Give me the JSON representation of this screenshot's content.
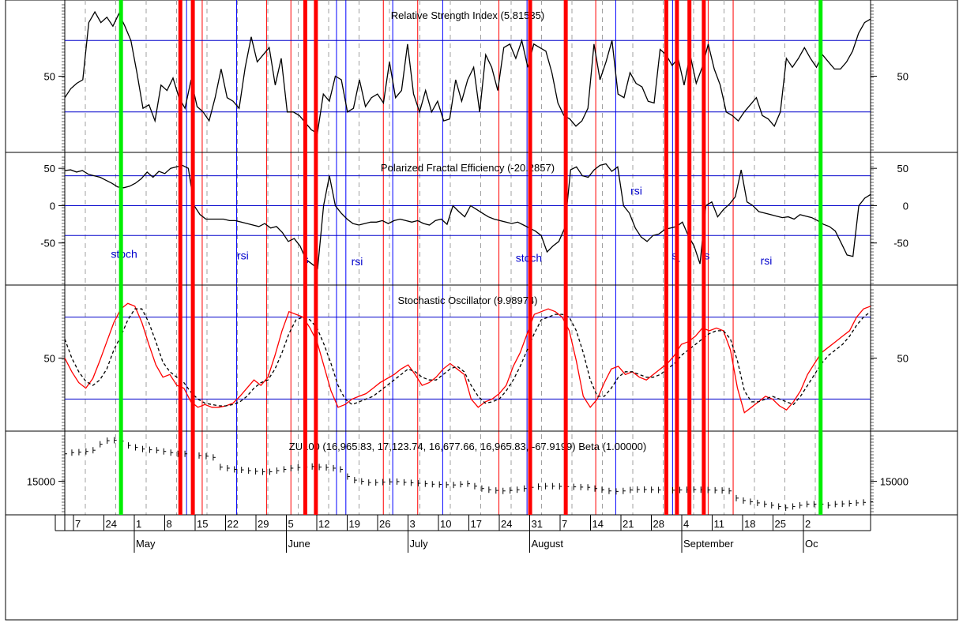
{
  "colors": {
    "background": "#ffffff",
    "frame": "#000000",
    "level_line": "#0000cc",
    "signal_red": "#ff0000",
    "signal_green": "#00ee00",
    "signal_blue": "#0000ff",
    "grid": "#a0a0a0",
    "series_black": "#000000",
    "series_red": "#ff0000",
    "label_blue": "#0000cc"
  },
  "chart_data": [
    {
      "type": "line",
      "title": "Relative Strength Index (5.81535)",
      "ylim": [
        10,
        90
      ],
      "levels": [
        30,
        70
      ],
      "y_ticks": [
        "50"
      ],
      "y_tick_values": [
        50
      ],
      "series": [
        {
          "style": "solid-black",
          "values": [
            38,
            43,
            46,
            48,
            80,
            86,
            80,
            83,
            78,
            85,
            78,
            70,
            52,
            32,
            34,
            25,
            45,
            42,
            49,
            38,
            32,
            48,
            33,
            30,
            25,
            38,
            54,
            38,
            36,
            32,
            55,
            72,
            58,
            62,
            66,
            45,
            60,
            30,
            30,
            28,
            24,
            20,
            18,
            40,
            36,
            50,
            48,
            30,
            32,
            48,
            33,
            38,
            40,
            35,
            58,
            38,
            42,
            68,
            40,
            30,
            42,
            30,
            36,
            25,
            26,
            48,
            36,
            48,
            55,
            30,
            62,
            55,
            42,
            66,
            68,
            60,
            70,
            55,
            68,
            66,
            64,
            52,
            35,
            28,
            26,
            22,
            25,
            32,
            68,
            48,
            58,
            70,
            40,
            38,
            52,
            46,
            44,
            36,
            35,
            65,
            62,
            56,
            60,
            45,
            62,
            46,
            55,
            68,
            54,
            45,
            30,
            28,
            25,
            30,
            34,
            38,
            28,
            26,
            22,
            30,
            60,
            55,
            60,
            66,
            60,
            55,
            62,
            58,
            54,
            54,
            58,
            64,
            74,
            80,
            82
          ]
        }
      ]
    },
    {
      "type": "line",
      "title": "Polarized Fractal Efficiency (-20.2857)",
      "ylim": [
        -100,
        65
      ],
      "levels": [
        -40,
        0,
        40
      ],
      "y_ticks": [
        "50",
        "0",
        "-50"
      ],
      "y_tick_values": [
        50,
        0,
        -50
      ],
      "annotations": [
        {
          "text": "stoch",
          "x": 9.5,
          "y": -70
        },
        {
          "text": "rsi",
          "x": 28.5,
          "y": -72
        },
        {
          "text": "s",
          "x": 38.6,
          "y": -77
        },
        {
          "text": "rsi",
          "x": 46.8,
          "y": -80
        },
        {
          "text": "stoch",
          "x": 74.3,
          "y": -75
        },
        {
          "text": "rsi",
          "x": 91.5,
          "y": 15
        },
        {
          "text": "s",
          "x": 97.6,
          "y": -72
        },
        {
          "text": "r",
          "x": 98.2,
          "y": -82
        },
        {
          "text": "s",
          "x": 102.8,
          "y": -72
        },
        {
          "text": "rsi",
          "x": 112.3,
          "y": -79
        }
      ],
      "series": [
        {
          "style": "solid-black",
          "values": [
            47,
            48,
            45,
            47,
            42,
            40,
            38,
            34,
            30,
            25,
            24,
            26,
            30,
            36,
            45,
            38,
            46,
            43,
            50,
            52,
            54,
            50,
            0,
            -12,
            -18,
            -18,
            -18,
            -18,
            -20,
            -20,
            -22,
            -24,
            -26,
            -28,
            -24,
            -30,
            -28,
            -36,
            -48,
            -44,
            -54,
            -72,
            -78,
            -84,
            0,
            40,
            0,
            -10,
            -18,
            -24,
            -26,
            -24,
            -22,
            -22,
            -20,
            -24,
            -20,
            -18,
            -20,
            -22,
            -20,
            -24,
            -26,
            -20,
            -18,
            -25,
            0,
            -8,
            -15,
            0,
            -5,
            -10,
            -15,
            -18,
            -20,
            -22,
            -24,
            -22,
            -26,
            -30,
            -34,
            -40,
            -62,
            -54,
            -48,
            -30,
            48,
            52,
            40,
            38,
            48,
            54,
            56,
            46,
            52,
            0,
            -10,
            -30,
            -42,
            -48,
            -40,
            -38,
            -32,
            -30,
            -28,
            -22,
            -40,
            -54,
            -78,
            0,
            5,
            -15,
            -5,
            2,
            12,
            48,
            5,
            0,
            -8,
            -10,
            -12,
            -14,
            -16,
            -15,
            -18,
            -12,
            -14,
            -16,
            -20,
            -25,
            -28,
            -34,
            -50,
            -66,
            -68,
            0,
            10,
            15
          ]
        }
      ]
    },
    {
      "type": "line",
      "title": "Stochastic Oscillator (9.98974)",
      "ylim": [
        0,
        100
      ],
      "levels": [
        20,
        80
      ],
      "y_ticks": [
        "50"
      ],
      "y_tick_values": [
        50
      ],
      "series": [
        {
          "style": "solid-red",
          "values": [
            50,
            40,
            32,
            28,
            35,
            48,
            62,
            76,
            86,
            90,
            88,
            76,
            60,
            45,
            36,
            38,
            30,
            28,
            18,
            14,
            16,
            14,
            14,
            15,
            17,
            22,
            28,
            34,
            30,
            36,
            52,
            70,
            84,
            82,
            80,
            72,
            62,
            44,
            26,
            14,
            16,
            20,
            22,
            24,
            28,
            32,
            35,
            38,
            42,
            45,
            38,
            30,
            32,
            36,
            42,
            46,
            42,
            38,
            20,
            14,
            18,
            20,
            24,
            30,
            44,
            54,
            68,
            82,
            84,
            86,
            84,
            80,
            70,
            48,
            22,
            14,
            20,
            32,
            42,
            44,
            38,
            40,
            36,
            34,
            38,
            42,
            46,
            52,
            60,
            62,
            66,
            72,
            70,
            72,
            70,
            56,
            28,
            10,
            14,
            18,
            22,
            20,
            15,
            12,
            18,
            26,
            38,
            46,
            54,
            58,
            62,
            66,
            70,
            80,
            86,
            88
          ]
        },
        {
          "style": "dashed-black",
          "values": [
            64,
            50,
            40,
            33,
            30,
            34,
            42,
            56,
            66,
            78,
            86,
            86,
            76,
            62,
            47,
            40,
            36,
            32,
            25,
            20,
            17,
            16,
            15,
            15,
            16,
            18,
            22,
            28,
            32,
            34,
            42,
            54,
            68,
            78,
            80,
            78,
            72,
            60,
            46,
            30,
            20,
            16,
            18,
            20,
            22,
            26,
            30,
            34,
            38,
            42,
            40,
            36,
            34,
            34,
            38,
            42,
            44,
            40,
            30,
            22,
            17,
            18,
            20,
            26,
            34,
            44,
            56,
            68,
            78,
            80,
            82,
            82,
            80,
            70,
            54,
            34,
            22,
            22,
            28,
            36,
            40,
            40,
            38,
            36,
            36,
            38,
            42,
            46,
            52,
            56,
            60,
            64,
            68,
            70,
            70,
            64,
            48,
            26,
            18,
            18,
            20,
            22,
            20,
            18,
            16,
            22,
            30,
            38,
            46,
            52,
            56,
            60,
            66,
            74,
            80,
            84
          ]
        }
      ]
    },
    {
      "type": "line",
      "title": "ZU100 (16,965.83, 17,123.74, 16,677.66, 16,965.83, -67.9199) Beta (1.00000)",
      "ylim": [
        13800,
        16900
      ],
      "y_ticks": [
        "15000"
      ],
      "y_tick_values": [
        15000
      ],
      "series": [
        {
          "style": "dotted-black-bars",
          "values": [
            16150,
            16200,
            16220,
            16250,
            16300,
            16550,
            16700,
            16720,
            16680,
            16500,
            16420,
            16350,
            16320,
            16300,
            16250,
            16200,
            16150,
            16150,
            16100,
            16080,
            16050,
            16000,
            15600,
            15550,
            15500,
            15480,
            15450,
            15420,
            15400,
            15400,
            15450,
            15500,
            15550,
            15580,
            15600,
            15620,
            15600,
            15580,
            15550,
            15500,
            15200,
            15050,
            15000,
            14950,
            14950,
            14970,
            14980,
            14990,
            14960,
            14940,
            14920,
            14900,
            14880,
            14870,
            14860,
            14850,
            14880,
            14900,
            14800,
            14700,
            14650,
            14620,
            14600,
            14620,
            14650,
            14700,
            14750,
            14780,
            14800,
            14800,
            14790,
            14780,
            14770,
            14760,
            14750,
            14700,
            14650,
            14600,
            14580,
            14600,
            14640,
            14660,
            14660,
            14650,
            14640,
            14620,
            14630,
            14640,
            14650,
            14660,
            14650,
            14640,
            14630,
            14620,
            14600,
            14300,
            14200,
            14150,
            14100,
            14050,
            14000,
            13950,
            13900,
            13950,
            14000,
            14050,
            14050,
            14050,
            14000,
            14050,
            14060,
            14080,
            14100,
            14120,
            14150
          ]
        }
      ]
    },
    {
      "type": "table",
      "x_axis": {
        "day_ticks": [
          "7",
          "24",
          "1",
          "8",
          "15",
          "22",
          "29",
          "5",
          "12",
          "19",
          "26",
          "3",
          "10",
          "17",
          "24",
          "31",
          "7",
          "14",
          "21",
          "28",
          "4",
          "11",
          "18",
          "25",
          "2"
        ],
        "month_labels": [
          "May",
          "June",
          "July",
          "August",
          "September",
          "Oc"
        ]
      },
      "vertical_signal_lines": {
        "thick_red": [
          18.5,
          20.5,
          38.5,
          40.2,
          74.5,
          80.2,
          96.3,
          98.0,
          100.0,
          102.3
        ],
        "thin_red": [
          22.0,
          32.3,
          36.2,
          51.0,
          56.5,
          69.5,
          85.0,
          103.0,
          107.0
        ],
        "thin_blue": [
          19.5,
          27.5,
          43.5,
          45.0,
          52.5,
          60.5,
          74.0,
          88.2,
          97.3
        ],
        "green": [
          9.0,
          121.0
        ]
      }
    }
  ]
}
